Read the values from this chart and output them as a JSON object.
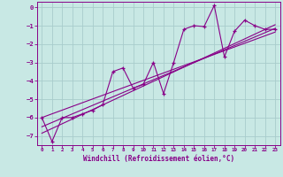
{
  "title": "",
  "xlabel": "Windchill (Refroidissement éolien,°C)",
  "bg_color": "#c8e8e4",
  "grid_color": "#a8cccc",
  "line_color": "#880088",
  "xlim": [
    -0.5,
    23.5
  ],
  "ylim": [
    -7.5,
    0.3
  ],
  "yticks": [
    0,
    -1,
    -2,
    -3,
    -4,
    -5,
    -6,
    -7
  ],
  "xticks": [
    0,
    1,
    2,
    3,
    4,
    5,
    6,
    7,
    8,
    9,
    10,
    11,
    12,
    13,
    14,
    15,
    16,
    17,
    18,
    19,
    20,
    21,
    22,
    23
  ],
  "series1_x": [
    0,
    1,
    2,
    3,
    4,
    5,
    6,
    7,
    8,
    9,
    10,
    11,
    12,
    13,
    14,
    15,
    16,
    17,
    18,
    19,
    20,
    21,
    22,
    23
  ],
  "series1_y": [
    -6.0,
    -7.3,
    -6.0,
    -6.0,
    -5.8,
    -5.6,
    -5.3,
    -3.5,
    -3.3,
    -4.4,
    -4.2,
    -3.0,
    -4.7,
    -3.0,
    -1.2,
    -1.0,
    -1.05,
    0.1,
    -2.7,
    -1.3,
    -0.7,
    -1.0,
    -1.2,
    -1.2
  ],
  "series2_x": [
    0,
    23
  ],
  "series2_y": [
    -6.5,
    -1.15
  ],
  "series3_x": [
    0,
    23
  ],
  "series3_y": [
    -6.0,
    -1.35
  ],
  "series4_x": [
    0,
    23
  ],
  "series4_y": [
    -6.85,
    -0.95
  ]
}
